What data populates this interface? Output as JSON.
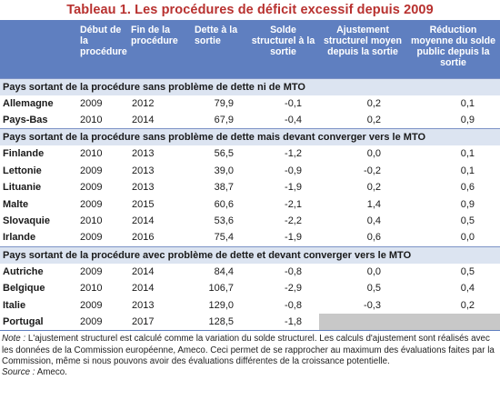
{
  "title": "Tableau 1. Les procédures de déficit excessif depuis 2009",
  "headers": {
    "debut": "Début de la procédure",
    "fin": "Fin de la procédure",
    "dette": "Dette à la sortie",
    "solde": "Solde structurel à la sortie",
    "ajustement": "Ajustement structurel moyen depuis la sortie",
    "reduction": "Réduction moyenne du solde public depuis la sortie"
  },
  "sections": [
    {
      "label": "Pays sortant de la procédure sans problème de dette ni de MTO",
      "rows": [
        {
          "country": "Allemagne",
          "debut": "2009",
          "fin": "2012",
          "dette": "79,9",
          "solde": "-0,1",
          "ajustement": "0,2",
          "reduction": "0,1"
        },
        {
          "country": "Pays-Bas",
          "debut": "2010",
          "fin": "2014",
          "dette": "67,9",
          "solde": "-0,4",
          "ajustement": "0,2",
          "reduction": "0,9"
        }
      ]
    },
    {
      "label": "Pays sortant de la procédure sans problème de dette mais devant converger vers le MTO",
      "rows": [
        {
          "country": "Finlande",
          "debut": "2010",
          "fin": "2013",
          "dette": "56,5",
          "solde": "-1,2",
          "ajustement": "0,0",
          "reduction": "0,1"
        },
        {
          "country": "Lettonie",
          "debut": "2009",
          "fin": "2013",
          "dette": "39,0",
          "solde": "-0,9",
          "ajustement": "-0,2",
          "reduction": "0,1"
        },
        {
          "country": "Lituanie",
          "debut": "2009",
          "fin": "2013",
          "dette": "38,7",
          "solde": "-1,9",
          "ajustement": "0,2",
          "reduction": "0,6"
        },
        {
          "country": "Malte",
          "debut": "2009",
          "fin": "2015",
          "dette": "60,6",
          "solde": "-2,1",
          "ajustement": "1,4",
          "reduction": "0,9"
        },
        {
          "country": "Slovaquie",
          "debut": "2010",
          "fin": "2014",
          "dette": "53,6",
          "solde": "-2,2",
          "ajustement": "0,4",
          "reduction": "0,5"
        },
        {
          "country": "Irlande",
          "debut": "2009",
          "fin": "2016",
          "dette": "75,4",
          "solde": "-1,9",
          "ajustement": "0,6",
          "reduction": "0,0"
        }
      ]
    },
    {
      "label": "Pays sortant de la procédure avec problème de dette et devant converger vers le MTO",
      "rows": [
        {
          "country": "Autriche",
          "debut": "2009",
          "fin": "2014",
          "dette": "84,4",
          "solde": "-0,8",
          "ajustement": "0,0",
          "reduction": "0,5"
        },
        {
          "country": "Belgique",
          "debut": "2010",
          "fin": "2014",
          "dette": "106,7",
          "solde": "-2,9",
          "ajustement": "0,5",
          "reduction": "0,4"
        },
        {
          "country": "Italie",
          "debut": "2009",
          "fin": "2013",
          "dette": "129,0",
          "solde": "-0,8",
          "ajustement": "-0,3",
          "reduction": "0,2"
        },
        {
          "country": "Portugal",
          "debut": "2009",
          "fin": "2017",
          "dette": "128,5",
          "solde": "-1,8",
          "ajustement": "",
          "reduction": ""
        }
      ]
    }
  ],
  "note": {
    "label": "Note :",
    "text": "L'ajustement structurel est calculé comme la variation du solde structurel. Les calculs d'ajustement sont réalisés avec les données de la Commission européenne, Ameco. Ceci permet de se rapprocher au maximum des évaluations faites par la Commission, même si nous pouvons avoir des évaluations différentes de la croissance potentielle."
  },
  "source": {
    "label": "Source :",
    "text": "Ameco."
  }
}
